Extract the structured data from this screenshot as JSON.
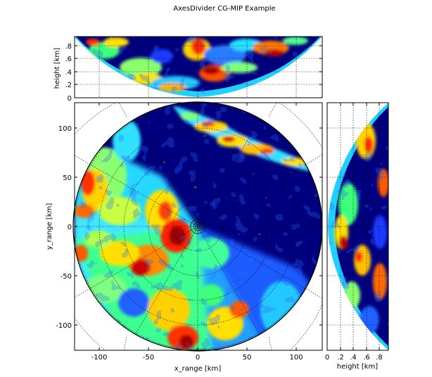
{
  "figure": {
    "title": "AxesDivider CG-MIP Example"
  },
  "colors": {
    "background": "#ffffff",
    "jet_low": "#00007f",
    "jet_mid": "#7fff7f",
    "jet_high": "#7f0000"
  },
  "chart_data": [
    {
      "type": "heatmap",
      "panel": "main",
      "title": "",
      "xlabel": "x_range [km]",
      "ylabel": "y_range [km]",
      "xlim": [
        -128,
        128
      ],
      "ylim": [
        -128,
        128
      ],
      "xticks": [
        -100,
        -50,
        0,
        50,
        100
      ],
      "yticks": [
        -100,
        -50,
        0,
        50,
        100
      ],
      "xtick_labels": [
        "-100",
        "-50",
        "0",
        "50",
        "100"
      ],
      "ytick_labels": [
        "-100",
        "-50",
        "0",
        "50",
        "100"
      ],
      "grid": "polar, dotted",
      "colormap": "jet",
      "radius_km": 128
    },
    {
      "type": "heatmap",
      "panel": "top",
      "xlabel": "",
      "ylabel": "height [km]",
      "ylim": [
        0,
        0.95
      ],
      "yticks": [
        0,
        0.2,
        0.4,
        0.6,
        0.8
      ],
      "ytick_labels": [
        "0",
        ".2",
        ".4",
        ".6",
        ".8"
      ],
      "grid": "dotted",
      "colormap": "jet"
    },
    {
      "type": "heatmap",
      "panel": "right",
      "xlabel": "height [km]",
      "ylabel": "",
      "xlim": [
        0,
        0.95
      ],
      "xticks": [
        0,
        0.2,
        0.4,
        0.6,
        0.8
      ],
      "xtick_labels": [
        "0",
        ".2",
        ".4",
        ".6",
        ".8"
      ],
      "grid": "dotted",
      "colormap": "jet"
    }
  ]
}
